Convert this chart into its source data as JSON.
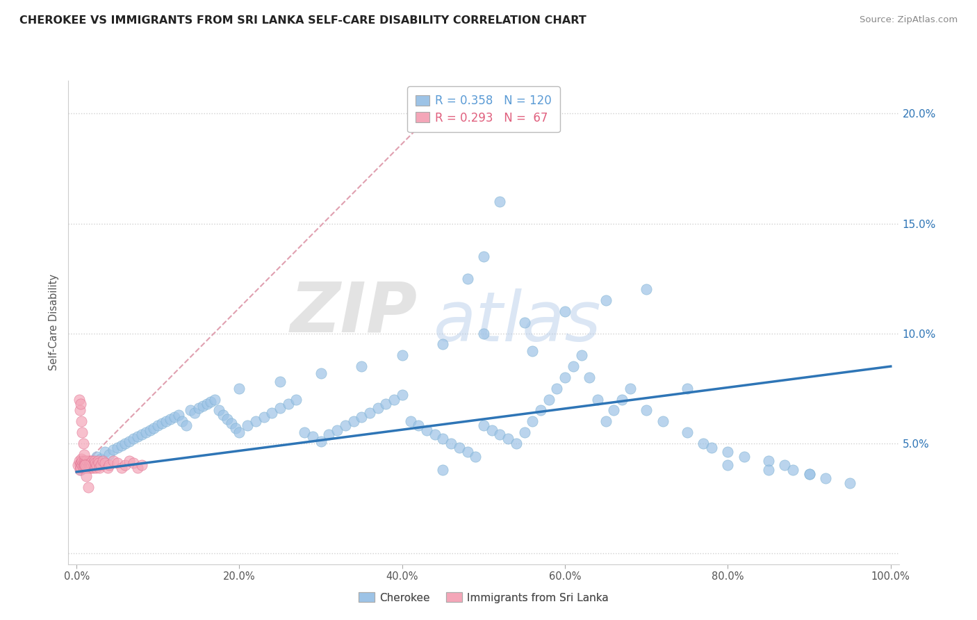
{
  "title": "CHEROKEE VS IMMIGRANTS FROM SRI LANKA SELF-CARE DISABILITY CORRELATION CHART",
  "source_text": "Source: ZipAtlas.com",
  "ylabel": "Self-Care Disability",
  "xlabel": "",
  "watermark_zip": "ZIP",
  "watermark_atlas": "atlas",
  "legend_entries": [
    {
      "label": "R = 0.358   N = 120",
      "color": "#5b9bd5"
    },
    {
      "label": "R = 0.293   N =  67",
      "color": "#e0607e"
    }
  ],
  "legend_bottom": [
    {
      "label": "Cherokee",
      "color": "#9dc3e6"
    },
    {
      "label": "Immigrants from Sri Lanka",
      "color": "#f4a6b8"
    }
  ],
  "xlim": [
    -0.01,
    1.01
  ],
  "ylim": [
    -0.005,
    0.215
  ],
  "xticks": [
    0.0,
    0.2,
    0.4,
    0.6,
    0.8,
    1.0
  ],
  "yticks": [
    0.0,
    0.05,
    0.1,
    0.15,
    0.2
  ],
  "xtick_labels": [
    "0.0%",
    "20.0%",
    "40.0%",
    "60.0%",
    "80.0%",
    "100.0%"
  ],
  "ytick_labels": [
    "",
    "5.0%",
    "10.0%",
    "15.0%",
    "20.0%"
  ],
  "blue_color": "#9dc3e6",
  "pink_color": "#f4a6b8",
  "line_color": "#2e75b6",
  "dashed_line_color": "#e0607e",
  "title_fontsize": 12,
  "source_fontsize": 10,
  "background_color": "#ffffff",
  "grid_color": "#d0d0d0",
  "blue_scatter_x": [
    0.005,
    0.01,
    0.02,
    0.025,
    0.03,
    0.035,
    0.04,
    0.045,
    0.05,
    0.055,
    0.06,
    0.065,
    0.07,
    0.075,
    0.08,
    0.085,
    0.09,
    0.095,
    0.1,
    0.105,
    0.11,
    0.115,
    0.12,
    0.125,
    0.13,
    0.135,
    0.14,
    0.145,
    0.15,
    0.155,
    0.16,
    0.165,
    0.17,
    0.175,
    0.18,
    0.185,
    0.19,
    0.195,
    0.2,
    0.21,
    0.22,
    0.23,
    0.24,
    0.25,
    0.26,
    0.27,
    0.28,
    0.29,
    0.3,
    0.31,
    0.32,
    0.33,
    0.34,
    0.35,
    0.36,
    0.37,
    0.38,
    0.39,
    0.4,
    0.41,
    0.42,
    0.43,
    0.44,
    0.45,
    0.46,
    0.47,
    0.48,
    0.49,
    0.5,
    0.51,
    0.52,
    0.53,
    0.54,
    0.55,
    0.56,
    0.57,
    0.58,
    0.59,
    0.6,
    0.61,
    0.62,
    0.63,
    0.64,
    0.65,
    0.66,
    0.67,
    0.68,
    0.7,
    0.72,
    0.75,
    0.77,
    0.78,
    0.8,
    0.82,
    0.85,
    0.87,
    0.88,
    0.9,
    0.92,
    0.95,
    0.2,
    0.25,
    0.3,
    0.35,
    0.4,
    0.45,
    0.5,
    0.55,
    0.6,
    0.65,
    0.7,
    0.75,
    0.8,
    0.85,
    0.9,
    0.5,
    0.52,
    0.48,
    0.56,
    0.45
  ],
  "blue_scatter_y": [
    0.038,
    0.04,
    0.042,
    0.044,
    0.043,
    0.046,
    0.045,
    0.047,
    0.048,
    0.049,
    0.05,
    0.051,
    0.052,
    0.053,
    0.054,
    0.055,
    0.056,
    0.057,
    0.058,
    0.059,
    0.06,
    0.061,
    0.062,
    0.063,
    0.06,
    0.058,
    0.065,
    0.064,
    0.066,
    0.067,
    0.068,
    0.069,
    0.07,
    0.065,
    0.063,
    0.061,
    0.059,
    0.057,
    0.055,
    0.058,
    0.06,
    0.062,
    0.064,
    0.066,
    0.068,
    0.07,
    0.055,
    0.053,
    0.051,
    0.054,
    0.056,
    0.058,
    0.06,
    0.062,
    0.064,
    0.066,
    0.068,
    0.07,
    0.072,
    0.06,
    0.058,
    0.056,
    0.054,
    0.052,
    0.05,
    0.048,
    0.046,
    0.044,
    0.058,
    0.056,
    0.054,
    0.052,
    0.05,
    0.055,
    0.06,
    0.065,
    0.07,
    0.075,
    0.08,
    0.085,
    0.09,
    0.08,
    0.07,
    0.06,
    0.065,
    0.07,
    0.075,
    0.065,
    0.06,
    0.055,
    0.05,
    0.048,
    0.046,
    0.044,
    0.042,
    0.04,
    0.038,
    0.036,
    0.034,
    0.032,
    0.075,
    0.078,
    0.082,
    0.085,
    0.09,
    0.095,
    0.1,
    0.105,
    0.11,
    0.115,
    0.12,
    0.075,
    0.04,
    0.038,
    0.036,
    0.135,
    0.16,
    0.125,
    0.092,
    0.038
  ],
  "pink_scatter_x": [
    0.002,
    0.003,
    0.004,
    0.004,
    0.005,
    0.005,
    0.006,
    0.006,
    0.007,
    0.007,
    0.008,
    0.008,
    0.009,
    0.009,
    0.01,
    0.01,
    0.011,
    0.011,
    0.012,
    0.012,
    0.013,
    0.013,
    0.014,
    0.014,
    0.015,
    0.015,
    0.016,
    0.016,
    0.017,
    0.017,
    0.018,
    0.018,
    0.019,
    0.019,
    0.02,
    0.02,
    0.021,
    0.022,
    0.023,
    0.024,
    0.025,
    0.026,
    0.027,
    0.028,
    0.03,
    0.032,
    0.035,
    0.038,
    0.04,
    0.045,
    0.05,
    0.055,
    0.06,
    0.065,
    0.07,
    0.075,
    0.08,
    0.003,
    0.004,
    0.005,
    0.006,
    0.007,
    0.008,
    0.009,
    0.01,
    0.012,
    0.014
  ],
  "pink_scatter_y": [
    0.04,
    0.042,
    0.04,
    0.038,
    0.041,
    0.039,
    0.043,
    0.041,
    0.04,
    0.042,
    0.041,
    0.039,
    0.04,
    0.042,
    0.041,
    0.039,
    0.04,
    0.042,
    0.041,
    0.039,
    0.04,
    0.042,
    0.041,
    0.039,
    0.04,
    0.042,
    0.041,
    0.039,
    0.04,
    0.042,
    0.041,
    0.039,
    0.04,
    0.042,
    0.041,
    0.039,
    0.04,
    0.042,
    0.041,
    0.039,
    0.04,
    0.042,
    0.041,
    0.039,
    0.04,
    0.042,
    0.041,
    0.039,
    0.04,
    0.042,
    0.041,
    0.039,
    0.04,
    0.042,
    0.041,
    0.039,
    0.04,
    0.07,
    0.065,
    0.068,
    0.06,
    0.055,
    0.05,
    0.045,
    0.04,
    0.035,
    0.03
  ],
  "blue_line_x": [
    0.0,
    1.0
  ],
  "blue_line_y": [
    0.037,
    0.085
  ],
  "dashed_line_x": [
    0.0,
    0.45
  ],
  "dashed_line_y": [
    0.037,
    0.205
  ]
}
